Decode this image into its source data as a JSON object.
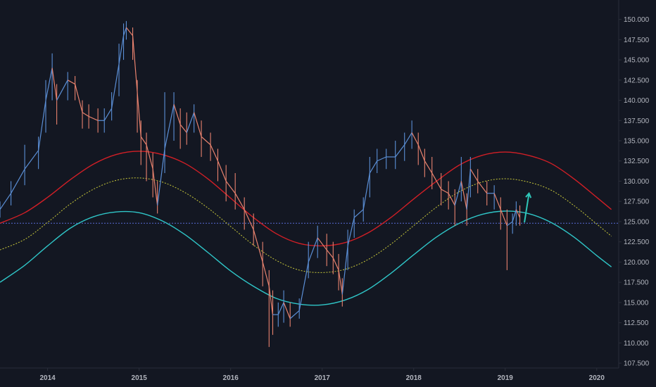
{
  "colors": {
    "background": "#131722",
    "axis_line": "#2a2e39",
    "axis_text": "#b2b5be",
    "candle_up": "#5b8fd6",
    "candle_down": "#e8826e",
    "band_upper": "#d11f26",
    "band_middle": "#c8c83a",
    "band_lower": "#2fc6c8",
    "ref_line": "#5b6bd6",
    "arrow": "#2fc6b8"
  },
  "chart_data": {
    "type": "line",
    "title": "",
    "xlabel": "",
    "ylabel": "",
    "grid": false,
    "xlim": [
      2013.48,
      2020.24
    ],
    "ylim": [
      106.9,
      152.4
    ],
    "x_ticks": [
      {
        "value": 2014,
        "label": "2014"
      },
      {
        "value": 2015,
        "label": "2015"
      },
      {
        "value": 2016,
        "label": "2016"
      },
      {
        "value": 2017,
        "label": "2017"
      },
      {
        "value": 2018,
        "label": "2018"
      },
      {
        "value": 2019,
        "label": "2019"
      },
      {
        "value": 2020,
        "label": "2020"
      }
    ],
    "y_ticks": [
      {
        "value": 107.5,
        "label": "107.500"
      },
      {
        "value": 110,
        "label": "110.000"
      },
      {
        "value": 112.5,
        "label": "112.500"
      },
      {
        "value": 115,
        "label": "115.000"
      },
      {
        "value": 117.5,
        "label": "117.500"
      },
      {
        "value": 120,
        "label": "120.000"
      },
      {
        "value": 122.5,
        "label": "122.500"
      },
      {
        "value": 125,
        "label": "125.000"
      },
      {
        "value": 127.5,
        "label": "127.500"
      },
      {
        "value": 130,
        "label": "130.000"
      },
      {
        "value": 132.5,
        "label": "132.500"
      },
      {
        "value": 135,
        "label": "135.000"
      },
      {
        "value": 137.5,
        "label": "137.500"
      },
      {
        "value": 140,
        "label": "140.000"
      },
      {
        "value": 142.5,
        "label": "142.500"
      },
      {
        "value": 145,
        "label": "145.000"
      },
      {
        "value": 147.5,
        "label": "147.500"
      },
      {
        "value": 150,
        "label": "150.000"
      }
    ],
    "price_series": {
      "x": [
        2013.48,
        2013.6,
        2013.75,
        2013.9,
        2013.98,
        2014.05,
        2014.1,
        2014.22,
        2014.3,
        2014.38,
        2014.45,
        2014.55,
        2014.62,
        2014.7,
        2014.78,
        2014.83,
        2014.86,
        2014.93,
        2014.98,
        2015.02,
        2015.08,
        2015.15,
        2015.2,
        2015.28,
        2015.38,
        2015.45,
        2015.52,
        2015.6,
        2015.68,
        2015.78,
        2015.86,
        2015.95,
        2016.05,
        2016.15,
        2016.25,
        2016.35,
        2016.42,
        2016.46,
        2016.52,
        2016.58,
        2016.65,
        2016.75,
        2016.85,
        2016.95,
        2017.05,
        2017.12,
        2017.18,
        2017.22,
        2017.28,
        2017.35,
        2017.45,
        2017.52,
        2017.6,
        2017.7,
        2017.8,
        2017.9,
        2017.98,
        2018.05,
        2018.12,
        2018.2,
        2018.3,
        2018.38,
        2018.45,
        2018.52,
        2018.58,
        2018.62,
        2018.7,
        2018.8,
        2018.88,
        2018.95,
        2019.02,
        2019.08,
        2019.12,
        2019.16
      ],
      "close": [
        126.5,
        128.5,
        131.5,
        133.8,
        140.0,
        144.0,
        140.0,
        142.5,
        142.0,
        138.5,
        138.0,
        137.5,
        137.5,
        139.0,
        144.5,
        148.0,
        149.0,
        148.0,
        141.0,
        135.5,
        134.5,
        131.5,
        127.0,
        134.0,
        139.5,
        137.0,
        136.0,
        138.5,
        135.5,
        134.5,
        132.5,
        130.0,
        128.5,
        126.5,
        124.0,
        120.0,
        117.0,
        113.5,
        113.5,
        115.0,
        113.0,
        114.0,
        120.0,
        123.0,
        121.5,
        120.5,
        119.0,
        116.0,
        122.0,
        125.5,
        126.5,
        131.0,
        132.5,
        133.0,
        133.0,
        134.5,
        136.0,
        134.5,
        132.5,
        131.0,
        129.0,
        128.5,
        127.0,
        130.0,
        126.5,
        131.5,
        130.0,
        128.5,
        128.5,
        126.5,
        124.5,
        125.0,
        126.5,
        125.5
      ],
      "high": [
        127.5,
        130.0,
        134.5,
        135.5,
        142.5,
        145.8,
        142.0,
        143.5,
        143.0,
        140.0,
        139.5,
        139.0,
        139.0,
        141.0,
        147.0,
        149.5,
        149.8,
        149.0,
        142.5,
        137.5,
        136.0,
        133.5,
        130.0,
        141.0,
        141.0,
        139.0,
        138.5,
        139.5,
        137.5,
        136.0,
        134.0,
        132.0,
        131.0,
        128.0,
        126.0,
        122.5,
        119.0,
        116.5,
        115.0,
        116.5,
        115.0,
        115.5,
        122.5,
        124.5,
        123.5,
        122.5,
        121.0,
        118.0,
        124.0,
        126.5,
        128.0,
        133.0,
        134.0,
        134.0,
        135.0,
        136.0,
        137.5,
        136.0,
        134.0,
        133.0,
        131.0,
        130.0,
        129.0,
        133.0,
        128.5,
        133.0,
        131.5,
        130.0,
        129.5,
        128.0,
        126.5,
        126.0,
        127.5,
        127.0
      ],
      "low": [
        125.5,
        127.0,
        129.5,
        131.5,
        136.0,
        140.0,
        137.0,
        140.0,
        140.0,
        136.5,
        136.5,
        136.0,
        136.0,
        137.5,
        140.5,
        145.0,
        147.5,
        145.0,
        136.0,
        132.0,
        130.0,
        128.0,
        126.0,
        131.0,
        135.0,
        134.0,
        134.5,
        136.0,
        133.0,
        132.5,
        130.0,
        127.5,
        126.5,
        124.0,
        122.0,
        117.0,
        109.5,
        111.0,
        112.0,
        112.5,
        112.0,
        113.0,
        118.0,
        120.5,
        119.5,
        118.5,
        116.5,
        114.5,
        119.0,
        123.0,
        125.0,
        128.0,
        131.0,
        131.5,
        131.5,
        132.5,
        134.0,
        132.0,
        130.5,
        129.0,
        127.0,
        126.5,
        124.5,
        127.5,
        124.5,
        128.0,
        128.5,
        127.0,
        126.5,
        124.0,
        119.0,
        123.5,
        124.5,
        124.5
      ]
    },
    "series": [
      {
        "x": [
          2013.48,
          2013.75,
          2014.0,
          2014.25,
          2014.5,
          2014.75,
          2015.0,
          2015.25,
          2015.5,
          2015.75,
          2016.0,
          2016.25,
          2016.5,
          2016.75,
          2017.0,
          2017.25,
          2017.5,
          2017.75,
          2018.0,
          2018.25,
          2018.5,
          2018.75,
          2019.0,
          2019.25,
          2019.5,
          2019.75,
          2020.0,
          2020.16
        ],
        "values": [
          124.8,
          126.1,
          128.0,
          130.2,
          132.1,
          133.3,
          133.7,
          133.3,
          132.2,
          130.3,
          127.9,
          125.5,
          123.5,
          122.3,
          122.0,
          122.4,
          123.6,
          125.5,
          127.8,
          130.0,
          132.0,
          133.2,
          133.6,
          133.2,
          132.2,
          130.3,
          128.0,
          126.5
        ],
        "color_key": "band_upper",
        "dash": "solid"
      },
      {
        "x": [
          2013.48,
          2013.75,
          2014.0,
          2014.25,
          2014.5,
          2014.75,
          2015.0,
          2015.25,
          2015.5,
          2015.75,
          2016.0,
          2016.25,
          2016.5,
          2016.75,
          2017.0,
          2017.25,
          2017.5,
          2017.75,
          2018.0,
          2018.25,
          2018.5,
          2018.75,
          2019.0,
          2019.25,
          2019.5,
          2019.75,
          2020.0,
          2020.16
        ],
        "values": [
          121.5,
          122.8,
          124.9,
          127.2,
          129.0,
          130.1,
          130.4,
          129.9,
          128.6,
          126.7,
          124.4,
          122.1,
          120.2,
          119.0,
          118.7,
          119.1,
          120.3,
          122.2,
          124.5,
          126.8,
          128.7,
          129.9,
          130.3,
          129.9,
          128.9,
          127.0,
          124.7,
          123.2
        ],
        "color_key": "band_middle",
        "dash": "dotted"
      },
      {
        "x": [
          2013.48,
          2013.75,
          2014.0,
          2014.25,
          2014.5,
          2014.75,
          2015.0,
          2015.25,
          2015.5,
          2015.75,
          2016.0,
          2016.25,
          2016.5,
          2016.75,
          2017.0,
          2017.25,
          2017.5,
          2017.75,
          2018.0,
          2018.25,
          2018.5,
          2018.75,
          2019.0,
          2019.25,
          2019.5,
          2019.75,
          2020.0,
          2020.16
        ],
        "values": [
          117.5,
          119.6,
          122.0,
          124.2,
          125.6,
          126.2,
          126.1,
          125.1,
          123.4,
          121.2,
          118.9,
          117.0,
          115.5,
          114.8,
          114.7,
          115.3,
          116.6,
          118.6,
          120.9,
          123.1,
          124.8,
          125.9,
          126.3,
          126.0,
          124.9,
          123.1,
          120.8,
          119.4
        ],
        "color_key": "band_lower",
        "dash": "solid"
      }
    ],
    "reference_line": {
      "value": 124.8,
      "color_key": "ref_line",
      "dash": "dotted"
    },
    "annotations": [
      {
        "type": "arrow",
        "from": [
          2019.21,
          124.9
        ],
        "to": [
          2019.26,
          128.5
        ],
        "color_key": "arrow"
      }
    ]
  }
}
